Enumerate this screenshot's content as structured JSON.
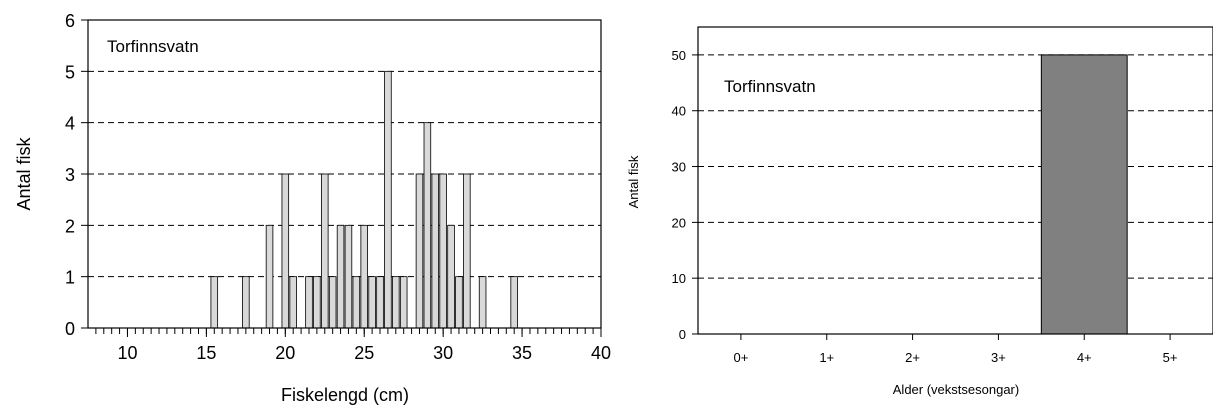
{
  "chart_data": [
    {
      "type": "bar",
      "annotation": "Torfinnsvatn",
      "xlabel": "Fiskelengd (cm)",
      "ylabel": "Antal fisk",
      "xlim": [
        7.5,
        40
      ],
      "ylim": [
        0,
        6
      ],
      "xticks": [
        10,
        15,
        20,
        25,
        30,
        35,
        40
      ],
      "yticks": [
        0,
        1,
        2,
        3,
        4,
        5,
        6
      ],
      "grid": "horizontal dashed",
      "bar_color": "#d9d9d9",
      "x": [
        15.5,
        17.5,
        19,
        20,
        20.5,
        21.5,
        22,
        22.5,
        23,
        23.5,
        24,
        24.5,
        25,
        25.5,
        26,
        26.5,
        27,
        27.5,
        28.5,
        29,
        29.5,
        30,
        30.5,
        31,
        31.5,
        32.5,
        34.5
      ],
      "values": [
        1,
        1,
        2,
        3,
        1,
        1,
        1,
        3,
        1,
        2,
        2,
        1,
        2,
        1,
        1,
        5,
        1,
        1,
        3,
        4,
        3,
        3,
        2,
        1,
        3,
        1,
        1
      ]
    },
    {
      "type": "bar",
      "annotation": "Torfinnsvatn",
      "xlabel": "Alder (vekstsesongar)",
      "ylabel": "Antal fisk",
      "categories": [
        "0+",
        "1+",
        "2+",
        "3+",
        "4+",
        "5+"
      ],
      "values": [
        0,
        0,
        0,
        0,
        50,
        0
      ],
      "ylim": [
        0,
        55
      ],
      "yticks": [
        0,
        10,
        20,
        30,
        40,
        50
      ],
      "grid": "horizontal dashed",
      "bar_color": "#808080"
    }
  ]
}
